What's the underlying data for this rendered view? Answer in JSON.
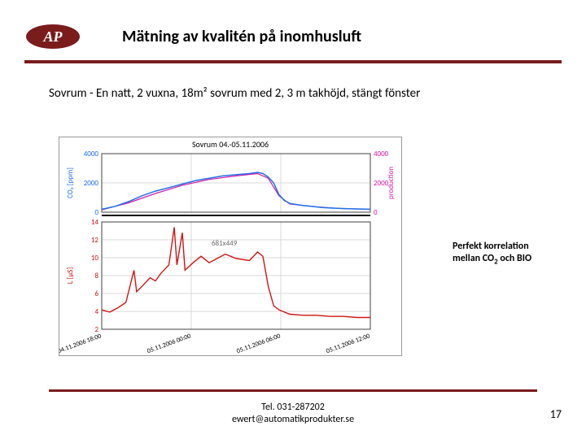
{
  "colors": {
    "accent": "#7a1c1c",
    "logo_bg": "#7a1c1c",
    "logo_fg": "#ffffff",
    "grid": "#d8d8d8",
    "axis": "#404040",
    "series_co2": "#1e6fe8",
    "series_prod": "#d61aa8",
    "series_bio": "#d11414",
    "label_blue": "#1e6fe8",
    "label_mag": "#d61aa8",
    "label_red": "#d11414"
  },
  "title": "Mätning av kvalitén på inomhusluft",
  "subtitle": "Sovrum - En natt, 2 vuxna, 18m² sovrum med 2, 3 m takhöjd, stängt fönster",
  "annotation_line1": "Perfekt korrelation",
  "annotation_line2_pre": "mellan CO",
  "annotation_line2_sub": "2",
  "annotation_line2_post": " och BIO",
  "contact_line1": "Tel. 031-287202",
  "contact_line2": "ewert@automatikprodukter.se",
  "page_number": "17",
  "chart": {
    "panel_title": "Sovrum 04.-05.11.2006",
    "size_overlay": "681x449",
    "top": {
      "left_axis_label": "CO₂ [ppm]",
      "right_axis_label": "production",
      "left_ticks": [
        "4000",
        "2000",
        "0"
      ],
      "right_ticks": [
        "4000",
        "2000",
        "0"
      ],
      "co2_points": [
        [
          0.0,
          0.05
        ],
        [
          0.05,
          0.1
        ],
        [
          0.1,
          0.18
        ],
        [
          0.15,
          0.28
        ],
        [
          0.2,
          0.36
        ],
        [
          0.25,
          0.42
        ],
        [
          0.3,
          0.48
        ],
        [
          0.35,
          0.54
        ],
        [
          0.4,
          0.58
        ],
        [
          0.45,
          0.62
        ],
        [
          0.5,
          0.64
        ],
        [
          0.55,
          0.66
        ],
        [
          0.58,
          0.68
        ],
        [
          0.6,
          0.66
        ],
        [
          0.62,
          0.6
        ],
        [
          0.64,
          0.5
        ],
        [
          0.66,
          0.3
        ],
        [
          0.68,
          0.2
        ],
        [
          0.7,
          0.15
        ],
        [
          0.74,
          0.12
        ],
        [
          0.78,
          0.1
        ],
        [
          0.82,
          0.08
        ],
        [
          0.86,
          0.07
        ],
        [
          0.92,
          0.06
        ],
        [
          1.0,
          0.05
        ]
      ],
      "prod_points": [
        [
          0.0,
          0.04
        ],
        [
          0.1,
          0.16
        ],
        [
          0.2,
          0.32
        ],
        [
          0.3,
          0.46
        ],
        [
          0.4,
          0.56
        ],
        [
          0.5,
          0.62
        ],
        [
          0.58,
          0.66
        ],
        [
          0.62,
          0.58
        ],
        [
          0.66,
          0.28
        ],
        [
          0.7,
          0.14
        ],
        [
          0.8,
          0.09
        ],
        [
          0.9,
          0.06
        ],
        [
          1.0,
          0.05
        ]
      ]
    },
    "bottom": {
      "left_axis_label": "L [µS]",
      "left_ticks": [
        "14",
        "12",
        "10",
        "8",
        "6",
        "4",
        "2"
      ],
      "x_ticks": [
        "04.11.2006 18:00",
        "05.11.2006 00:00",
        "05.11.2006 06:00",
        "05.11.2006 12:00"
      ],
      "bio_points": [
        [
          0.0,
          0.18
        ],
        [
          0.03,
          0.16
        ],
        [
          0.06,
          0.2
        ],
        [
          0.09,
          0.25
        ],
        [
          0.12,
          0.55
        ],
        [
          0.13,
          0.35
        ],
        [
          0.15,
          0.4
        ],
        [
          0.18,
          0.48
        ],
        [
          0.2,
          0.45
        ],
        [
          0.22,
          0.52
        ],
        [
          0.25,
          0.6
        ],
        [
          0.27,
          0.95
        ],
        [
          0.28,
          0.6
        ],
        [
          0.3,
          0.9
        ],
        [
          0.31,
          0.55
        ],
        [
          0.34,
          0.62
        ],
        [
          0.37,
          0.68
        ],
        [
          0.4,
          0.62
        ],
        [
          0.43,
          0.66
        ],
        [
          0.46,
          0.7
        ],
        [
          0.5,
          0.66
        ],
        [
          0.55,
          0.64
        ],
        [
          0.58,
          0.72
        ],
        [
          0.6,
          0.68
        ],
        [
          0.62,
          0.4
        ],
        [
          0.64,
          0.22
        ],
        [
          0.66,
          0.18
        ],
        [
          0.7,
          0.14
        ],
        [
          0.75,
          0.13
        ],
        [
          0.8,
          0.13
        ],
        [
          0.85,
          0.12
        ],
        [
          0.9,
          0.12
        ],
        [
          0.95,
          0.11
        ],
        [
          1.0,
          0.11
        ]
      ]
    }
  }
}
